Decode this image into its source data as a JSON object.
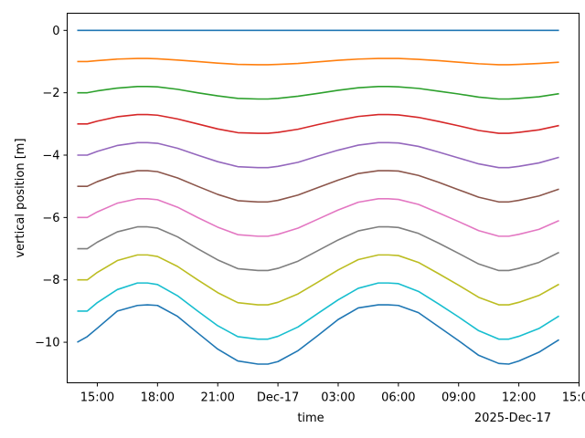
{
  "chart_data": {
    "type": "line",
    "xlabel": "time",
    "ylabel": "vertical position [m]",
    "x_offset_label": "2025-Dec-17",
    "xlim": [
      "2025-12-16T13:30",
      "2025-12-17T15:00"
    ],
    "ylim": [
      -11.3,
      0.55
    ],
    "x_ticks": [
      {
        "value": "2025-12-16T15:00",
        "label": "15:00"
      },
      {
        "value": "2025-12-16T18:00",
        "label": "18:00"
      },
      {
        "value": "2025-12-16T21:00",
        "label": "21:00"
      },
      {
        "value": "2025-12-17T00:00",
        "label": "Dec-17"
      },
      {
        "value": "2025-12-17T03:00",
        "label": "03:00"
      },
      {
        "value": "2025-12-17T06:00",
        "label": "06:00"
      },
      {
        "value": "2025-12-17T09:00",
        "label": "09:00"
      },
      {
        "value": "2025-12-17T12:00",
        "label": "12:00"
      },
      {
        "value": "2025-12-17T15:00",
        "label": "15:00"
      }
    ],
    "y_ticks": [
      {
        "value": 0,
        "label": "0"
      },
      {
        "value": -2,
        "label": "−2"
      },
      {
        "value": -4,
        "label": "−4"
      },
      {
        "value": -6,
        "label": "−6"
      },
      {
        "value": -8,
        "label": "−8"
      },
      {
        "value": -10,
        "label": "−10"
      }
    ],
    "x": [
      "2025-12-16T14:00",
      "2025-12-16T14:30",
      "2025-12-16T15:00",
      "2025-12-16T16:00",
      "2025-12-16T17:00",
      "2025-12-16T17:30",
      "2025-12-16T18:00",
      "2025-12-16T19:00",
      "2025-12-16T20:00",
      "2025-12-16T21:00",
      "2025-12-16T22:00",
      "2025-12-16T23:00",
      "2025-12-16T23:30",
      "2025-12-17T00:00",
      "2025-12-17T01:00",
      "2025-12-17T02:00",
      "2025-12-17T03:00",
      "2025-12-17T04:00",
      "2025-12-17T05:00",
      "2025-12-17T05:30",
      "2025-12-17T06:00",
      "2025-12-17T07:00",
      "2025-12-17T08:00",
      "2025-12-17T09:00",
      "2025-12-17T10:00",
      "2025-12-17T11:00",
      "2025-12-17T11:30",
      "2025-12-17T12:00",
      "2025-12-17T13:00",
      "2025-12-17T14:00"
    ],
    "series": [
      {
        "color": "#1f77b4",
        "values": [
          0.0,
          0.0,
          0.0,
          0.0,
          0.0,
          0.0,
          0.0,
          0.0,
          0.0,
          0.0,
          0.0,
          0.0,
          0.0,
          0.0,
          0.0,
          0.0,
          0.0,
          0.0,
          0.0,
          0.0,
          0.0,
          0.0,
          0.0,
          0.0,
          0.0,
          0.0,
          0.0,
          0.0,
          0.0,
          0.0
        ]
      },
      {
        "color": "#ff7f0e",
        "values": [
          -1.0,
          -1.0,
          -0.97,
          -0.92,
          -0.9,
          -0.9,
          -0.91,
          -0.95,
          -1.0,
          -1.05,
          -1.09,
          -1.1,
          -1.1,
          -1.09,
          -1.06,
          -1.01,
          -0.96,
          -0.92,
          -0.9,
          -0.9,
          -0.9,
          -0.93,
          -0.97,
          -1.02,
          -1.07,
          -1.1,
          -1.1,
          -1.09,
          -1.06,
          -1.02
        ]
      },
      {
        "color": "#2ca02c",
        "values": [
          -2.0,
          -2.0,
          -1.94,
          -1.85,
          -1.8,
          -1.8,
          -1.81,
          -1.89,
          -2.0,
          -2.1,
          -2.18,
          -2.2,
          -2.2,
          -2.18,
          -2.11,
          -2.02,
          -1.92,
          -1.84,
          -1.8,
          -1.8,
          -1.81,
          -1.86,
          -1.95,
          -2.04,
          -2.14,
          -2.2,
          -2.2,
          -2.18,
          -2.13,
          -2.03
        ]
      },
      {
        "color": "#d62728",
        "values": [
          -3.0,
          -3.0,
          -2.91,
          -2.77,
          -2.7,
          -2.7,
          -2.72,
          -2.84,
          -3.0,
          -3.16,
          -3.28,
          -3.3,
          -3.3,
          -3.27,
          -3.17,
          -3.02,
          -2.88,
          -2.76,
          -2.7,
          -2.7,
          -2.71,
          -2.79,
          -2.92,
          -3.06,
          -3.21,
          -3.3,
          -3.3,
          -3.27,
          -3.19,
          -3.05
        ]
      },
      {
        "color": "#9467bd",
        "values": [
          -4.0,
          -4.0,
          -3.88,
          -3.69,
          -3.6,
          -3.6,
          -3.62,
          -3.78,
          -4.0,
          -4.21,
          -4.37,
          -4.4,
          -4.4,
          -4.36,
          -4.23,
          -4.03,
          -3.84,
          -3.68,
          -3.6,
          -3.6,
          -3.61,
          -3.72,
          -3.9,
          -4.09,
          -4.28,
          -4.4,
          -4.4,
          -4.36,
          -4.25,
          -4.07
        ]
      },
      {
        "color": "#8c564b",
        "values": [
          -5.0,
          -5.0,
          -4.85,
          -4.62,
          -4.5,
          -4.5,
          -4.53,
          -4.73,
          -5.0,
          -5.26,
          -5.46,
          -5.5,
          -5.5,
          -5.45,
          -5.28,
          -5.04,
          -4.8,
          -4.59,
          -4.5,
          -4.5,
          -4.51,
          -4.65,
          -4.87,
          -5.11,
          -5.35,
          -5.5,
          -5.5,
          -5.45,
          -5.31,
          -5.09
        ]
      },
      {
        "color": "#e377c2",
        "values": [
          -6.0,
          -6.0,
          -5.82,
          -5.54,
          -5.4,
          -5.4,
          -5.43,
          -5.67,
          -6.0,
          -6.31,
          -6.55,
          -6.6,
          -6.6,
          -6.54,
          -6.34,
          -6.05,
          -5.76,
          -5.51,
          -5.4,
          -5.4,
          -5.42,
          -5.58,
          -5.85,
          -6.13,
          -6.42,
          -6.6,
          -6.6,
          -6.54,
          -6.38,
          -6.1
        ]
      },
      {
        "color": "#7f7f7f",
        "values": [
          -7.0,
          -7.0,
          -6.79,
          -6.46,
          -6.3,
          -6.3,
          -6.34,
          -6.62,
          -7.0,
          -7.36,
          -7.64,
          -7.7,
          -7.7,
          -7.63,
          -7.4,
          -7.06,
          -6.72,
          -6.43,
          -6.3,
          -6.3,
          -6.32,
          -6.51,
          -6.82,
          -7.15,
          -7.49,
          -7.7,
          -7.7,
          -7.63,
          -7.44,
          -7.12
        ]
      },
      {
        "color": "#bcbd22",
        "values": [
          -8.0,
          -8.0,
          -7.76,
          -7.38,
          -7.2,
          -7.2,
          -7.25,
          -7.57,
          -8.0,
          -8.41,
          -8.73,
          -8.8,
          -8.8,
          -8.72,
          -8.45,
          -8.07,
          -7.68,
          -7.35,
          -7.2,
          -7.2,
          -7.22,
          -7.44,
          -7.8,
          -8.17,
          -8.56,
          -8.8,
          -8.8,
          -8.72,
          -8.5,
          -8.14
        ]
      },
      {
        "color": "#17becf",
        "values": [
          -9.0,
          -9.0,
          -8.73,
          -8.31,
          -8.1,
          -8.1,
          -8.15,
          -8.51,
          -9.0,
          -9.47,
          -9.82,
          -9.9,
          -9.9,
          -9.81,
          -9.51,
          -9.07,
          -8.64,
          -8.27,
          -8.1,
          -8.1,
          -8.12,
          -8.37,
          -8.77,
          -9.19,
          -9.63,
          -9.9,
          -9.9,
          -9.81,
          -9.56,
          -9.16
        ]
      },
      {
        "color": "#1f77b4",
        "values": [
          -10.0,
          -9.82,
          -9.55,
          -9.0,
          -8.82,
          -8.8,
          -8.82,
          -9.17,
          -9.7,
          -10.22,
          -10.6,
          -10.7,
          -10.7,
          -10.62,
          -10.27,
          -9.78,
          -9.27,
          -8.9,
          -8.8,
          -8.8,
          -8.82,
          -9.05,
          -9.5,
          -9.95,
          -10.42,
          -10.68,
          -10.7,
          -10.6,
          -10.32,
          -9.92
        ]
      }
    ]
  }
}
